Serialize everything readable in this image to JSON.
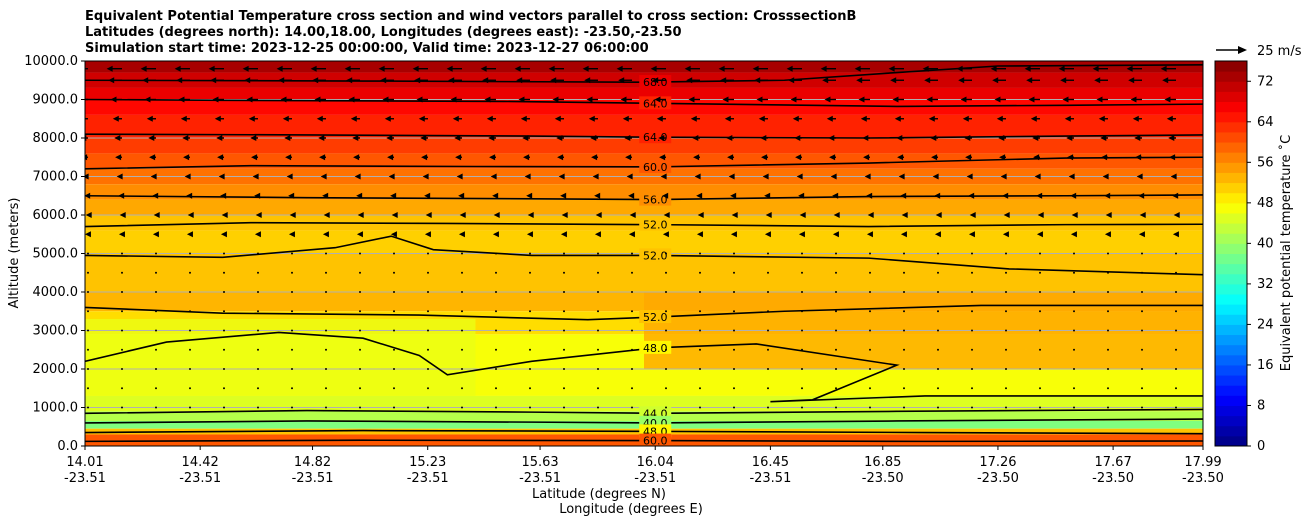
{
  "title": {
    "line1": "Equivalent Potential Temperature cross section and wind vectors parallel to cross section: CrosssectionB",
    "line2": "Latitudes (degrees north): 14.00,18.00, Longitudes (degrees east): -23.50,-23.50",
    "line3": "Simulation start time: 2023-12-25 00:00:00, Valid time: 2023-12-27 06:00:00"
  },
  "chart_data": {
    "type": "heatmap",
    "xlabel": "Latitude (degrees N)",
    "xlabel2": "Longitude (degrees E)",
    "ylabel": "Altitude (meters)",
    "ylim": [
      0,
      10000
    ],
    "xlim": [
      14.01,
      17.99
    ],
    "grid": "horizontal",
    "x_ticks": [
      {
        "lat": "14.01",
        "lon": "-23.51",
        "v": 14.01
      },
      {
        "lat": "14.42",
        "lon": "-23.51",
        "v": 14.42
      },
      {
        "lat": "14.82",
        "lon": "-23.51",
        "v": 14.82
      },
      {
        "lat": "15.23",
        "lon": "-23.51",
        "v": 15.23
      },
      {
        "lat": "15.63",
        "lon": "-23.51",
        "v": 15.63
      },
      {
        "lat": "16.04",
        "lon": "-23.51",
        "v": 16.04
      },
      {
        "lat": "16.45",
        "lon": "-23.51",
        "v": 16.45
      },
      {
        "lat": "16.85",
        "lon": "-23.50",
        "v": 16.85
      },
      {
        "lat": "17.26",
        "lon": "-23.50",
        "v": 17.26
      },
      {
        "lat": "17.67",
        "lon": "-23.50",
        "v": 17.67
      },
      {
        "lat": "17.99",
        "lon": "-23.50",
        "v": 17.99
      }
    ],
    "y_ticks": [
      {
        "label": "0.0",
        "v": 0
      },
      {
        "label": "1000.0",
        "v": 1000
      },
      {
        "label": "2000.0",
        "v": 2000
      },
      {
        "label": "3000.0",
        "v": 3000
      },
      {
        "label": "4000.0",
        "v": 4000
      },
      {
        "label": "5000.0",
        "v": 5000
      },
      {
        "label": "6000.0",
        "v": 6000
      },
      {
        "label": "7000.0",
        "v": 7000
      },
      {
        "label": "8000.0",
        "v": 8000
      },
      {
        "label": "9000.0",
        "v": 9000
      },
      {
        "label": "10000.0",
        "v": 10000
      }
    ],
    "colorbar": {
      "label": "Equivalent potential temperature ˚C",
      "min": 0,
      "max": 76,
      "step": 2,
      "ticks": [
        {
          "label": "0",
          "v": 0
        },
        {
          "label": "8",
          "v": 8
        },
        {
          "label": "16",
          "v": 16
        },
        {
          "label": "24",
          "v": 24
        },
        {
          "label": "32",
          "v": 32
        },
        {
          "label": "40",
          "v": 40
        },
        {
          "label": "48",
          "v": 48
        },
        {
          "label": "56",
          "v": 56
        },
        {
          "label": "64",
          "v": 64
        },
        {
          "label": "72",
          "v": 72
        }
      ]
    },
    "wind_key": {
      "label": "25 m/s",
      "speed": 25
    },
    "contours": [
      {
        "level": 68,
        "label": "68.0",
        "label_at": 16.04,
        "points": [
          [
            14.01,
            9500
          ],
          [
            15.0,
            9480
          ],
          [
            16.0,
            9450
          ],
          [
            16.5,
            9500
          ],
          [
            16.9,
            9700
          ],
          [
            17.26,
            9870
          ],
          [
            17.99,
            9900
          ]
        ]
      },
      {
        "level": 64,
        "label": "64.0",
        "label_at": 16.04,
        "points": [
          [
            14.01,
            9000
          ],
          [
            14.5,
            8980
          ],
          [
            15.5,
            8950
          ],
          [
            16.04,
            8900
          ],
          [
            16.9,
            8820
          ],
          [
            17.5,
            8850
          ],
          [
            17.99,
            8880
          ]
        ]
      },
      {
        "level": 64,
        "label": "64.0",
        "label_at": 16.04,
        "points": [
          [
            14.01,
            8100
          ],
          [
            14.8,
            8080
          ],
          [
            15.6,
            8050
          ],
          [
            16.04,
            8020
          ],
          [
            16.8,
            8000
          ],
          [
            17.5,
            8050
          ],
          [
            17.99,
            8080
          ]
        ]
      },
      {
        "level": 60,
        "label": "60.0",
        "label_at": 16.04,
        "points": [
          [
            14.01,
            7200
          ],
          [
            14.6,
            7280
          ],
          [
            15.4,
            7260
          ],
          [
            16.04,
            7250
          ],
          [
            16.8,
            7350
          ],
          [
            17.5,
            7480
          ],
          [
            17.99,
            7500
          ]
        ]
      },
      {
        "level": 56,
        "label": "56.0",
        "label_at": 16.04,
        "points": [
          [
            14.01,
            6500
          ],
          [
            14.8,
            6450
          ],
          [
            15.6,
            6420
          ],
          [
            16.04,
            6400
          ],
          [
            16.8,
            6480
          ],
          [
            17.5,
            6500
          ],
          [
            17.99,
            6520
          ]
        ]
      },
      {
        "level": 52,
        "label": "52.0",
        "label_at": 16.04,
        "points": [
          [
            14.01,
            5700
          ],
          [
            14.6,
            5800
          ],
          [
            15.3,
            5780
          ],
          [
            16.04,
            5750
          ],
          [
            16.8,
            5700
          ],
          [
            17.5,
            5750
          ],
          [
            17.99,
            5760
          ]
        ]
      },
      {
        "level": 52,
        "label": "52.0",
        "label_at": 16.04,
        "points": [
          [
            14.01,
            4950
          ],
          [
            14.5,
            4900
          ],
          [
            14.9,
            5150
          ],
          [
            15.1,
            5450
          ],
          [
            15.25,
            5100
          ],
          [
            15.6,
            4950
          ],
          [
            16.04,
            4950
          ],
          [
            16.8,
            4880
          ],
          [
            17.3,
            4600
          ],
          [
            17.99,
            4450
          ]
        ]
      },
      {
        "level": 52,
        "label": "52.0",
        "label_at": 16.04,
        "points": [
          [
            14.01,
            3600
          ],
          [
            14.5,
            3450
          ],
          [
            15.2,
            3400
          ],
          [
            15.8,
            3280
          ],
          [
            16.04,
            3350
          ],
          [
            16.5,
            3500
          ],
          [
            17.2,
            3650
          ],
          [
            17.99,
            3650
          ]
        ]
      },
      {
        "level": 48,
        "label": "48.0",
        "label_at": 16.04,
        "points": [
          [
            14.01,
            2200
          ],
          [
            14.3,
            2700
          ],
          [
            14.7,
            2950
          ],
          [
            15.0,
            2800
          ],
          [
            15.2,
            2350
          ],
          [
            15.3,
            1850
          ],
          [
            15.6,
            2200
          ],
          [
            16.04,
            2550
          ],
          [
            16.4,
            2650
          ],
          [
            16.9,
            2100
          ],
          [
            16.6,
            1200
          ],
          [
            16.45,
            1150
          ],
          [
            17.0,
            1300
          ],
          [
            17.99,
            1300
          ]
        ]
      },
      {
        "level": 44,
        "label": "44.0",
        "label_at": 16.04,
        "points": [
          [
            14.01,
            850
          ],
          [
            14.8,
            920
          ],
          [
            15.6,
            880
          ],
          [
            16.04,
            850
          ],
          [
            16.9,
            900
          ],
          [
            17.99,
            950
          ]
        ]
      },
      {
        "level": 40,
        "label": "40.0",
        "label_at": 16.04,
        "points": [
          [
            14.01,
            600
          ],
          [
            14.8,
            650
          ],
          [
            15.6,
            620
          ],
          [
            16.04,
            600
          ],
          [
            16.9,
            650
          ],
          [
            17.99,
            700
          ]
        ]
      },
      {
        "level": 48,
        "label": "48.0",
        "label_at": 16.04,
        "points": [
          [
            14.01,
            350
          ],
          [
            15.0,
            400
          ],
          [
            16.04,
            380
          ],
          [
            17.0,
            350
          ],
          [
            17.99,
            320
          ]
        ]
      },
      {
        "level": 60,
        "label": "60.0",
        "label_at": 16.04,
        "points": [
          [
            14.01,
            120
          ],
          [
            15.0,
            150
          ],
          [
            16.04,
            140
          ],
          [
            17.0,
            120
          ],
          [
            17.99,
            130
          ]
        ]
      }
    ],
    "wind_rows": [
      {
        "alt": 9800,
        "u": -2.0
      },
      {
        "alt": 9500,
        "u": -1.8
      },
      {
        "alt": 9000,
        "u": -1.5
      },
      {
        "alt": 8500,
        "u": -1.2
      },
      {
        "alt": 8000,
        "u": -1.0
      },
      {
        "alt": 7500,
        "u": -0.9
      },
      {
        "alt": 7000,
        "u": -0.7
      },
      {
        "alt": 6500,
        "u": -0.5
      },
      {
        "alt": 6000,
        "u": -0.3
      },
      {
        "alt": 5500,
        "u": -0.4
      },
      {
        "alt": 5000,
        "u": -0.2
      },
      {
        "alt": 4500,
        "u": -0.1
      },
      {
        "alt": 4000,
        "u": 0.1
      },
      {
        "alt": 3500,
        "u": 0.2
      },
      {
        "alt": 3000,
        "u": 0.1
      },
      {
        "alt": 2500,
        "u": 0.2
      },
      {
        "alt": 2000,
        "u": 0.1
      },
      {
        "alt": 1500,
        "u": 0.1
      },
      {
        "alt": 1000,
        "u": -0.1
      }
    ]
  }
}
